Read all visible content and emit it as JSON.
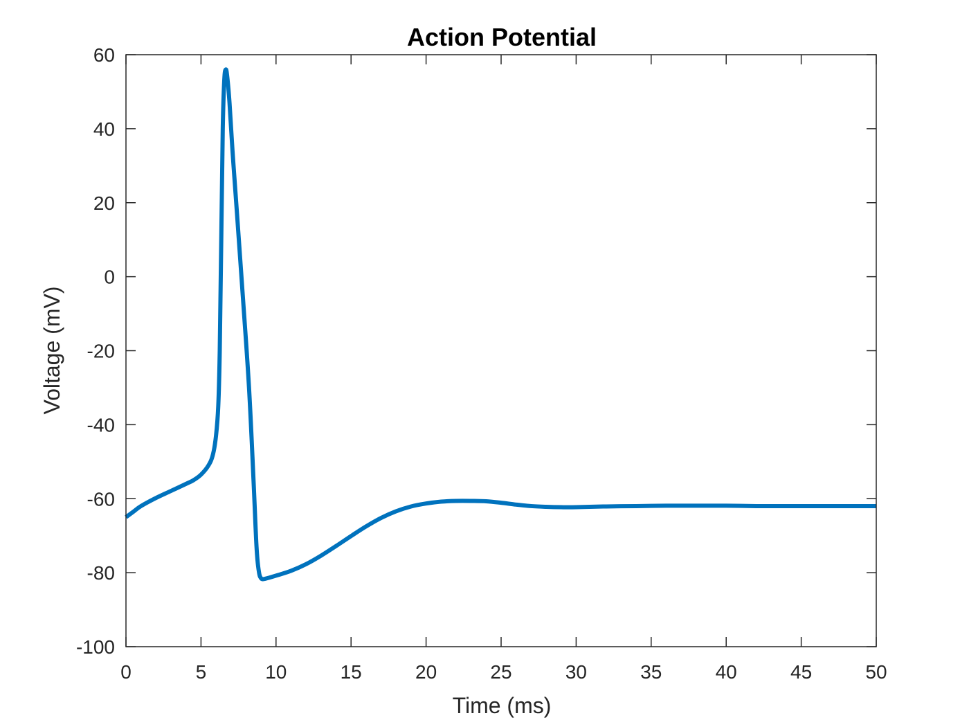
{
  "chart_data": {
    "type": "line",
    "title": "Action Potential",
    "xlabel": "Time (ms)",
    "ylabel": "Voltage (mV)",
    "xlim": [
      0,
      50
    ],
    "ylim": [
      -100,
      60
    ],
    "x_ticks": [
      0,
      5,
      10,
      15,
      20,
      25,
      30,
      35,
      40,
      45,
      50
    ],
    "x_tick_labels": [
      "0",
      "5",
      "10",
      "15",
      "20",
      "25",
      "30",
      "35",
      "40",
      "45",
      "50"
    ],
    "y_ticks": [
      60,
      40,
      20,
      0,
      -20,
      -40,
      -60,
      -80,
      -100
    ],
    "y_tick_labels": [
      "60",
      "40",
      "20",
      "0",
      "-20",
      "-40",
      "-60",
      "-80",
      "-100"
    ],
    "grid": false,
    "box": true,
    "series": [
      {
        "color": "#0072BD",
        "x": [
          0,
          0.5,
          1,
          2,
          3,
          4,
          4.5,
          5,
          5.5,
          5.8,
          6.0,
          6.15,
          6.25,
          6.35,
          6.45,
          6.55,
          6.65,
          6.75,
          6.9,
          7.1,
          7.4,
          7.8,
          8.2,
          8.5,
          8.7,
          8.85,
          9.0,
          9.2,
          9.5,
          10,
          11,
          12,
          13,
          14,
          15,
          16,
          17,
          18,
          19,
          20,
          21,
          22,
          23,
          24,
          25,
          26,
          27,
          28,
          29,
          30,
          32,
          34,
          36,
          38,
          40,
          42,
          44,
          46,
          48,
          50
        ],
        "y": [
          -65,
          -63.5,
          -62,
          -59.8,
          -57.9,
          -56,
          -55,
          -53.5,
          -51,
          -48,
          -43,
          -35,
          -20,
          10,
          40,
          53,
          56,
          54,
          47,
          34,
          17,
          -6,
          -30,
          -55,
          -73,
          -79.5,
          -81.5,
          -81.7,
          -81.4,
          -80.8,
          -79.5,
          -77.7,
          -75.4,
          -72.8,
          -70.1,
          -67.5,
          -65.2,
          -63.4,
          -62.1,
          -61.3,
          -60.8,
          -60.6,
          -60.6,
          -60.7,
          -61.1,
          -61.6,
          -62.0,
          -62.2,
          -62.3,
          -62.3,
          -62.1,
          -62.0,
          -61.9,
          -61.9,
          -61.9,
          -62.0,
          -62.0,
          -62.0,
          -62.0,
          -62.0
        ]
      }
    ]
  }
}
